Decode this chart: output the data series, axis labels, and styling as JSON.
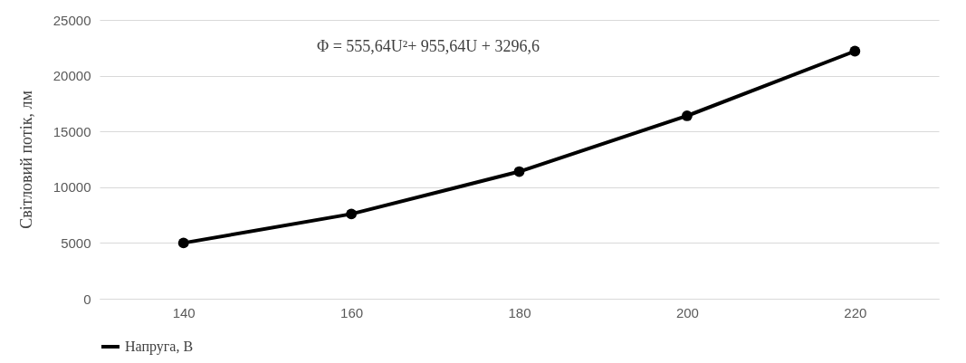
{
  "chart_data": {
    "type": "line",
    "categories": [
      "140",
      "160",
      "180",
      "200",
      "220"
    ],
    "series": [
      {
        "name": "Напруга, В",
        "color": "#000000",
        "values": [
          5000,
          7600,
          11400,
          16400,
          22200
        ]
      }
    ],
    "ylabel": "Світловий потік, лм",
    "ylim": [
      0,
      25000
    ],
    "yticks": [
      0,
      5000,
      10000,
      15000,
      20000,
      25000
    ],
    "grid": "y",
    "legend": "bottom",
    "marker": "circle",
    "line_style": "solid",
    "annotations": [
      "Φ = 555,64U²+ 955,64U + 3296,6"
    ]
  }
}
